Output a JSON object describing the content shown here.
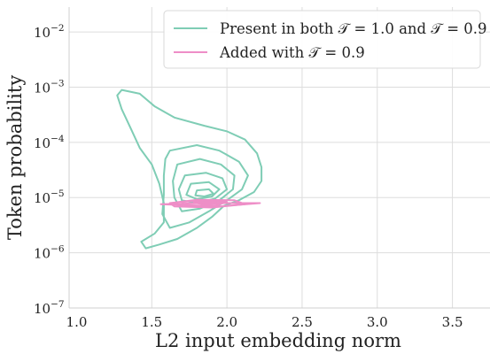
{
  "chart_data": {
    "type": "density-contour",
    "xlabel": "L2 input embedding norm",
    "ylabel": "Token probability",
    "xlim": [
      0.95,
      3.75
    ],
    "xticks": [
      1.0,
      1.5,
      2.0,
      2.5,
      3.0,
      3.5
    ],
    "xtick_labels": [
      "1.0",
      "1.5",
      "2.0",
      "2.5",
      "3.0",
      "3.5"
    ],
    "y_scale": "log",
    "ylim_exponent": [
      -7,
      -1.55
    ],
    "yticks": [
      -7,
      -6,
      -5,
      -4,
      -3,
      -2
    ],
    "ytick_labels": [
      {
        "base": "10",
        "exp": "−7"
      },
      {
        "base": "10",
        "exp": "−6"
      },
      {
        "base": "10",
        "exp": "−5"
      },
      {
        "base": "10",
        "exp": "−4"
      },
      {
        "base": "10",
        "exp": "−3"
      },
      {
        "base": "10",
        "exp": "−2"
      }
    ],
    "grid": true,
    "legend_position": "top-right",
    "series": [
      {
        "name": "Present in both 𝒯 = 1.0 and 𝒯 = 0.9",
        "color": "#7fcdb5",
        "contours": [
          [
            [
              1.3,
              -3.05
            ],
            [
              1.42,
              -3.12
            ],
            [
              1.52,
              -3.35
            ],
            [
              1.65,
              -3.55
            ],
            [
              1.85,
              -3.7
            ],
            [
              2.0,
              -3.8
            ],
            [
              2.12,
              -3.95
            ],
            [
              2.2,
              -4.2
            ],
            [
              2.23,
              -4.45
            ],
            [
              2.23,
              -4.7
            ],
            [
              2.18,
              -4.9
            ],
            [
              2.08,
              -5.05
            ],
            [
              1.98,
              -5.15
            ],
            [
              1.9,
              -5.35
            ],
            [
              1.8,
              -5.55
            ],
            [
              1.67,
              -5.75
            ],
            [
              1.55,
              -5.85
            ],
            [
              1.46,
              -5.92
            ],
            [
              1.43,
              -5.8
            ],
            [
              1.52,
              -5.65
            ],
            [
              1.58,
              -5.45
            ],
            [
              1.58,
              -5.1
            ],
            [
              1.55,
              -4.75
            ],
            [
              1.5,
              -4.4
            ],
            [
              1.42,
              -4.1
            ],
            [
              1.36,
              -3.75
            ],
            [
              1.3,
              -3.4
            ],
            [
              1.27,
              -3.15
            ],
            [
              1.3,
              -3.05
            ]
          ],
          [
            [
              1.62,
              -4.15
            ],
            [
              1.8,
              -4.05
            ],
            [
              1.95,
              -4.15
            ],
            [
              2.08,
              -4.35
            ],
            [
              2.14,
              -4.6
            ],
            [
              2.1,
              -4.85
            ],
            [
              2.0,
              -5.05
            ],
            [
              1.88,
              -5.25
            ],
            [
              1.75,
              -5.45
            ],
            [
              1.62,
              -5.55
            ],
            [
              1.57,
              -5.3
            ],
            [
              1.58,
              -4.95
            ],
            [
              1.58,
              -4.6
            ],
            [
              1.59,
              -4.3
            ],
            [
              1.62,
              -4.15
            ]
          ],
          [
            [
              1.67,
              -4.4
            ],
            [
              1.82,
              -4.3
            ],
            [
              1.96,
              -4.4
            ],
            [
              2.05,
              -4.6
            ],
            [
              2.04,
              -4.85
            ],
            [
              1.95,
              -5.05
            ],
            [
              1.82,
              -5.2
            ],
            [
              1.7,
              -5.25
            ],
            [
              1.65,
              -5.0
            ],
            [
              1.64,
              -4.7
            ],
            [
              1.67,
              -4.4
            ]
          ],
          [
            [
              1.72,
              -4.6
            ],
            [
              1.86,
              -4.55
            ],
            [
              1.97,
              -4.65
            ],
            [
              2.0,
              -4.85
            ],
            [
              1.92,
              -5.02
            ],
            [
              1.8,
              -5.1
            ],
            [
              1.7,
              -5.05
            ],
            [
              1.68,
              -4.85
            ],
            [
              1.72,
              -4.6
            ]
          ],
          [
            [
              1.76,
              -4.75
            ],
            [
              1.88,
              -4.72
            ],
            [
              1.95,
              -4.85
            ],
            [
              1.9,
              -4.98
            ],
            [
              1.8,
              -5.03
            ],
            [
              1.73,
              -4.95
            ],
            [
              1.76,
              -4.75
            ]
          ],
          [
            [
              1.8,
              -4.87
            ],
            [
              1.88,
              -4.85
            ],
            [
              1.91,
              -4.93
            ],
            [
              1.85,
              -4.98
            ],
            [
              1.79,
              -4.96
            ],
            [
              1.8,
              -4.87
            ]
          ]
        ]
      },
      {
        "name": "Added with 𝒯 = 0.9",
        "color": "#ee8ec7",
        "contours": [
          [
            [
              1.56,
              -5.12
            ],
            [
              1.85,
              -5.1
            ],
            [
              2.22,
              -5.1
            ],
            [
              1.95,
              -5.16
            ],
            [
              1.56,
              -5.12
            ]
          ],
          [
            [
              1.62,
              -5.1
            ],
            [
              1.8,
              -5.04
            ],
            [
              2.05,
              -5.05
            ],
            [
              2.12,
              -5.12
            ],
            [
              1.9,
              -5.18
            ],
            [
              1.65,
              -5.16
            ],
            [
              1.62,
              -5.1
            ]
          ],
          [
            [
              1.7,
              -5.08
            ],
            [
              1.85,
              -5.05
            ],
            [
              2.0,
              -5.08
            ],
            [
              1.92,
              -5.15
            ],
            [
              1.72,
              -5.14
            ],
            [
              1.7,
              -5.08
            ]
          ],
          [
            [
              1.78,
              -5.09
            ],
            [
              1.9,
              -5.07
            ],
            [
              1.95,
              -5.11
            ],
            [
              1.85,
              -5.13
            ],
            [
              1.78,
              -5.09
            ]
          ]
        ]
      }
    ]
  }
}
